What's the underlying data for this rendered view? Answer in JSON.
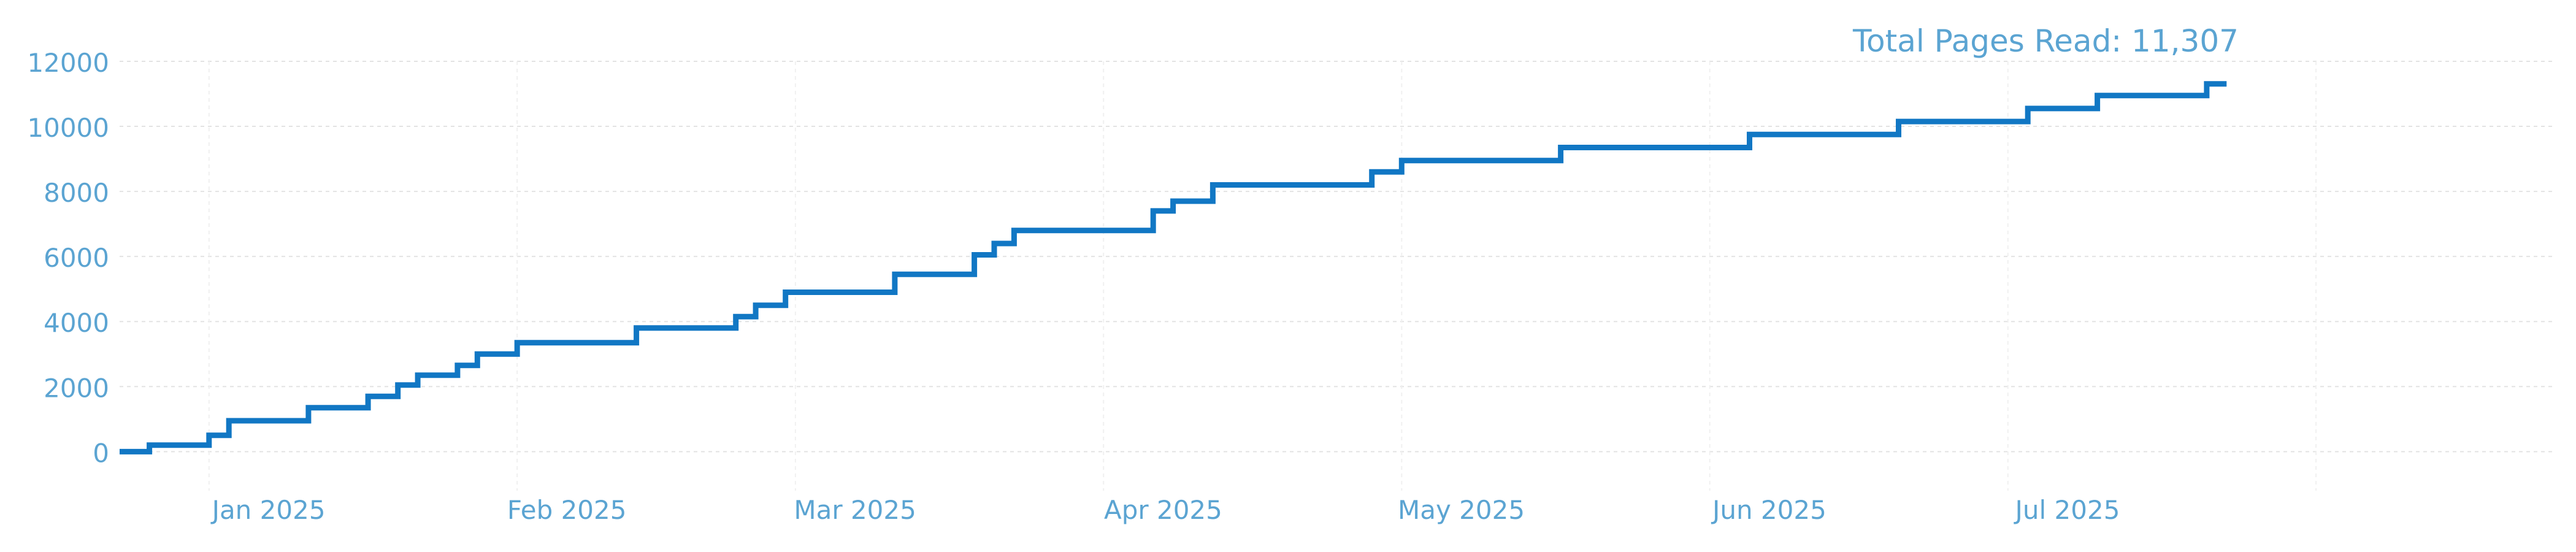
{
  "chart_data": {
    "type": "line",
    "step": true,
    "title": "Total Pages Read: 11,307",
    "title_position": "top-right",
    "xlabel": "",
    "ylabel": "",
    "xlim": [
      "2024-12-23",
      "2025-08-25"
    ],
    "ylim": [
      -1200,
      12000
    ],
    "yticks": [
      0,
      2000,
      4000,
      6000,
      8000,
      10000,
      12000
    ],
    "xticks": [
      {
        "date": "2025-01-07",
        "label": "Jan 2025"
      },
      {
        "date": "2025-02-06",
        "label": "Feb 2025"
      },
      {
        "date": "2025-03-07",
        "label": "Mar 2025"
      },
      {
        "date": "2025-04-07",
        "label": "Apr 2025"
      },
      {
        "date": "2025-05-07",
        "label": "May 2025"
      },
      {
        "date": "2025-06-07",
        "label": "Jun 2025"
      },
      {
        "date": "2025-07-07",
        "label": "Jul 2025"
      }
    ],
    "grid": true,
    "colors": {
      "line": "#1177c4",
      "text": "#5ba4d2",
      "grid": "#e3e3e3"
    },
    "series": [
      {
        "name": "",
        "x": [
          "2024-12-23",
          "2024-12-26",
          "2025-01-01",
          "2025-01-03",
          "2025-01-11",
          "2025-01-17",
          "2025-01-20",
          "2025-01-22",
          "2025-01-26",
          "2025-01-28",
          "2025-02-01",
          "2025-02-13",
          "2025-02-23",
          "2025-02-25",
          "2025-02-28",
          "2025-03-11",
          "2025-03-19",
          "2025-03-21",
          "2025-03-23",
          "2025-04-06",
          "2025-04-08",
          "2025-04-12",
          "2025-04-28",
          "2025-05-01",
          "2025-05-17",
          "2025-06-05",
          "2025-06-20",
          "2025-07-03",
          "2025-07-10",
          "2025-07-21",
          "2025-07-23"
        ],
        "y": [
          0,
          200,
          500,
          950,
          1350,
          1700,
          2050,
          2350,
          2650,
          3000,
          3350,
          3800,
          4150,
          4500,
          4900,
          5450,
          6050,
          6400,
          6800,
          7400,
          7700,
          8200,
          8600,
          8950,
          9350,
          9750,
          10150,
          10550,
          10950,
          11307,
          11307
        ]
      }
    ]
  }
}
